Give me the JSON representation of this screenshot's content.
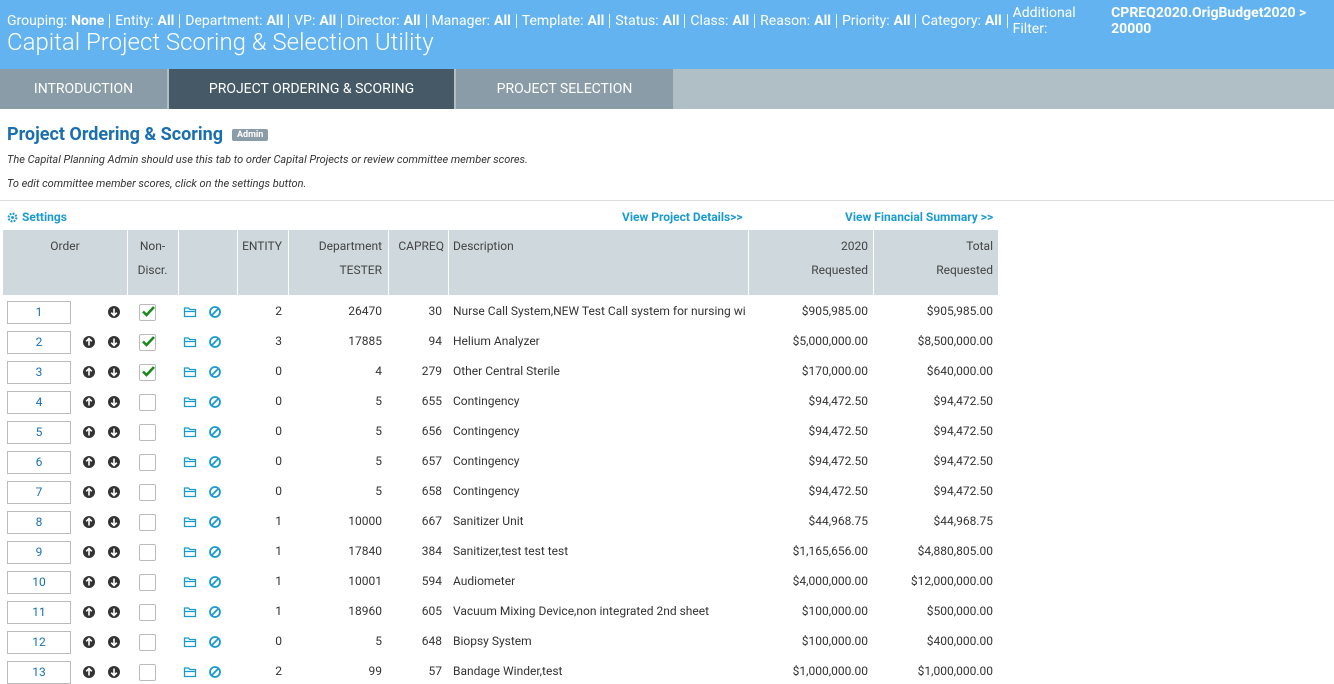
{
  "filter_bar": [
    {
      "label": "Grouping:",
      "value": "None"
    },
    {
      "label": "Entity:",
      "value": "All"
    },
    {
      "label": "Department:",
      "value": "All"
    },
    {
      "label": "VP:",
      "value": "All"
    },
    {
      "label": "Director:",
      "value": "All"
    },
    {
      "label": "Manager:",
      "value": "All"
    },
    {
      "label": "Template:",
      "value": "All"
    },
    {
      "label": "Status:",
      "value": "All"
    },
    {
      "label": "Class:",
      "value": "All"
    },
    {
      "label": "Reason:",
      "value": "All"
    },
    {
      "label": "Priority:",
      "value": "All"
    },
    {
      "label": "Category:",
      "value": "All"
    },
    {
      "label": "Additional Filter:",
      "value": "CPREQ2020.OrigBudget2020 > 20000"
    }
  ],
  "header": {
    "title": "Capital Project Scoring & Selection Utility"
  },
  "tabs": [
    "INTRODUCTION",
    "PROJECT ORDERING & SCORING",
    "PROJECT SELECTION"
  ],
  "section": {
    "title": "Project Ordering & Scoring",
    "badge": "Admin",
    "notes": [
      "The Capital Planning Admin should use this tab to order Capital Projects or review committee member scores.",
      "To edit committee member scores, click on the settings button."
    ]
  },
  "links": {
    "settings": "Settings",
    "details": "View Project Details>>",
    "financial": "View Financial Summary >>"
  },
  "table": {
    "columns": [
      [
        "Order"
      ],
      [
        "Non-",
        "Discr."
      ],
      [
        "ENTITY"
      ],
      [
        "Department",
        "TESTER"
      ],
      [
        "CAPREQ"
      ],
      [
        "Description"
      ],
      [
        "2020",
        "Requested"
      ],
      [
        "Total",
        "Requested"
      ]
    ],
    "rows": [
      {
        "order": 1,
        "non_discretionary": true,
        "entity": 2,
        "department": 26470,
        "capreq": 30,
        "description": "Nurse Call System,NEW Test Call system for nursing wi",
        "requested_2020": "$905,985.00",
        "total_requested": "$905,985.00"
      },
      {
        "order": 2,
        "non_discretionary": true,
        "entity": 3,
        "department": 17885,
        "capreq": 94,
        "description": "Helium Analyzer",
        "requested_2020": "$5,000,000.00",
        "total_requested": "$8,500,000.00"
      },
      {
        "order": 3,
        "non_discretionary": true,
        "entity": 0,
        "department": 4,
        "capreq": 279,
        "description": "Other Central Sterile",
        "requested_2020": "$170,000.00",
        "total_requested": "$640,000.00"
      },
      {
        "order": 4,
        "non_discretionary": false,
        "entity": 0,
        "department": 5,
        "capreq": 655,
        "description": "Contingency",
        "requested_2020": "$94,472.50",
        "total_requested": "$94,472.50"
      },
      {
        "order": 5,
        "non_discretionary": false,
        "entity": 0,
        "department": 5,
        "capreq": 656,
        "description": "Contingency",
        "requested_2020": "$94,472.50",
        "total_requested": "$94,472.50"
      },
      {
        "order": 6,
        "non_discretionary": false,
        "entity": 0,
        "department": 5,
        "capreq": 657,
        "description": "Contingency",
        "requested_2020": "$94,472.50",
        "total_requested": "$94,472.50"
      },
      {
        "order": 7,
        "non_discretionary": false,
        "entity": 0,
        "department": 5,
        "capreq": 658,
        "description": "Contingency",
        "requested_2020": "$94,472.50",
        "total_requested": "$94,472.50"
      },
      {
        "order": 8,
        "non_discretionary": false,
        "entity": 1,
        "department": 10000,
        "capreq": 667,
        "description": "Sanitizer Unit",
        "requested_2020": "$44,968.75",
        "total_requested": "$44,968.75"
      },
      {
        "order": 9,
        "non_discretionary": false,
        "entity": 1,
        "department": 17840,
        "capreq": 384,
        "description": "Sanitizer,test test test",
        "requested_2020": "$1,165,656.00",
        "total_requested": "$4,880,805.00"
      },
      {
        "order": 10,
        "non_discretionary": false,
        "entity": 1,
        "department": 10001,
        "capreq": 594,
        "description": "Audiometer",
        "requested_2020": "$4,000,000.00",
        "total_requested": "$12,000,000.00"
      },
      {
        "order": 11,
        "non_discretionary": false,
        "entity": 1,
        "department": 18960,
        "capreq": 605,
        "description": "Vacuum Mixing Device,non integrated 2nd sheet",
        "requested_2020": "$100,000.00",
        "total_requested": "$500,000.00"
      },
      {
        "order": 12,
        "non_discretionary": false,
        "entity": 0,
        "department": 5,
        "capreq": 648,
        "description": "Biopsy System",
        "requested_2020": "$100,000.00",
        "total_requested": "$400,000.00"
      },
      {
        "order": 13,
        "non_discretionary": false,
        "entity": 2,
        "department": 99,
        "capreq": 57,
        "description": "Bandage Winder,test",
        "requested_2020": "$1,000,000.00",
        "total_requested": "$1,000,000.00"
      }
    ]
  }
}
